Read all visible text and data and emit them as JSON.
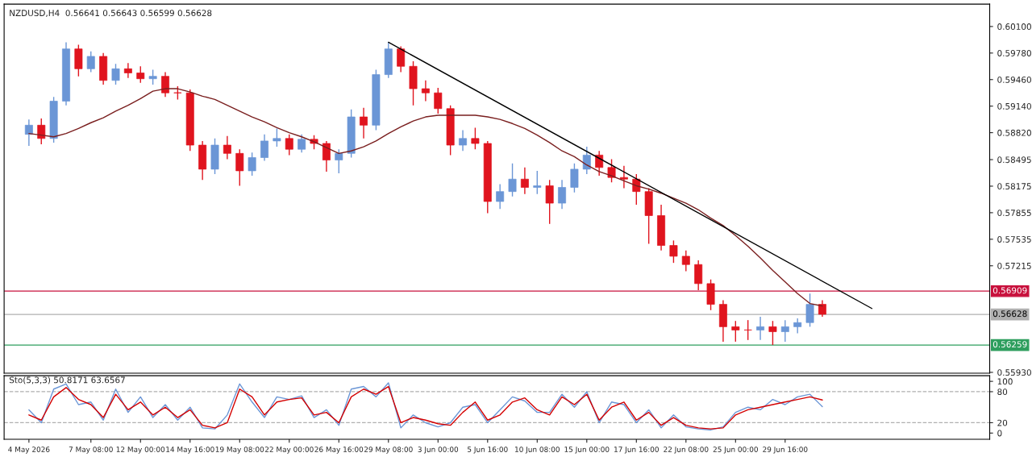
{
  "chart_data": [
    {
      "type": "candlestick",
      "title": "NZDUSD,H4  0.56641 0.56643 0.56599 0.56628",
      "categories": [
        null,
        null,
        null,
        null,
        null,
        null,
        null,
        null,
        null,
        null,
        null,
        null,
        null,
        null,
        null,
        null,
        null,
        null,
        null,
        null,
        null,
        null,
        null,
        null,
        null,
        null,
        null,
        null,
        null,
        null,
        null,
        null,
        null,
        null,
        null,
        null,
        null,
        null,
        null,
        null,
        null,
        null,
        null,
        null,
        null,
        null,
        null,
        null,
        null,
        null,
        null,
        null,
        null,
        null,
        null,
        null,
        null,
        null,
        null,
        null,
        null,
        null,
        null,
        null,
        null,
        null,
        null,
        null,
        null,
        null,
        null,
        null,
        null,
        null,
        null,
        null,
        null,
        null
      ],
      "ohlc": [
        [
          0.588,
          0.5898,
          0.5866,
          0.5891
        ],
        [
          0.5891,
          0.5899,
          0.5868,
          0.5875
        ],
        [
          0.5875,
          0.5925,
          0.587,
          0.592
        ],
        [
          0.592,
          0.5991,
          0.5915,
          0.5983
        ],
        [
          0.5983,
          0.5988,
          0.595,
          0.5959
        ],
        [
          0.5959,
          0.598,
          0.5955,
          0.5974
        ],
        [
          0.5974,
          0.5978,
          0.594,
          0.5945
        ],
        [
          0.5945,
          0.5965,
          0.594,
          0.5959
        ],
        [
          0.5959,
          0.5966,
          0.5948,
          0.5954
        ],
        [
          0.5954,
          0.5962,
          0.5942,
          0.5947
        ],
        [
          0.5947,
          0.5958,
          0.594,
          0.595
        ],
        [
          0.595,
          0.5955,
          0.5925,
          0.593
        ],
        [
          0.593,
          0.5938,
          0.5922,
          0.593
        ],
        [
          0.593,
          0.5934,
          0.586,
          0.5867
        ],
        [
          0.5867,
          0.5872,
          0.5825,
          0.5838
        ],
        [
          0.5838,
          0.5875,
          0.5832,
          0.5867
        ],
        [
          0.5867,
          0.5878,
          0.585,
          0.5857
        ],
        [
          0.5857,
          0.5862,
          0.5818,
          0.5836
        ],
        [
          0.5836,
          0.5858,
          0.583,
          0.5852
        ],
        [
          0.5852,
          0.588,
          0.5848,
          0.5872
        ],
        [
          0.5872,
          0.5887,
          0.5865,
          0.5875
        ],
        [
          0.5875,
          0.588,
          0.5855,
          0.5862
        ],
        [
          0.5862,
          0.588,
          0.5858,
          0.5874
        ],
        [
          0.5874,
          0.5879,
          0.5862,
          0.5869
        ],
        [
          0.5869,
          0.5872,
          0.5835,
          0.5849
        ],
        [
          0.5849,
          0.5862,
          0.5833,
          0.5857
        ],
        [
          0.5857,
          0.591,
          0.5852,
          0.5901
        ],
        [
          0.5901,
          0.5912,
          0.5875,
          0.5891
        ],
        [
          0.5891,
          0.5958,
          0.5885,
          0.5952
        ],
        [
          0.5952,
          0.5991,
          0.5948,
          0.5983
        ],
        [
          0.5983,
          0.5986,
          0.5955,
          0.5962
        ],
        [
          0.5962,
          0.5968,
          0.5915,
          0.5935
        ],
        [
          0.5935,
          0.5945,
          0.592,
          0.593
        ],
        [
          0.593,
          0.5936,
          0.5905,
          0.5911
        ],
        [
          0.5911,
          0.5915,
          0.5855,
          0.5867
        ],
        [
          0.5867,
          0.5885,
          0.586,
          0.5875
        ],
        [
          0.5875,
          0.5888,
          0.5862,
          0.5869
        ],
        [
          0.5869,
          0.5872,
          0.5785,
          0.5799
        ],
        [
          0.5799,
          0.582,
          0.579,
          0.5811
        ],
        [
          0.5811,
          0.5845,
          0.5805,
          0.5826
        ],
        [
          0.5826,
          0.584,
          0.5808,
          0.5816
        ],
        [
          0.5816,
          0.5836,
          0.5808,
          0.5818
        ],
        [
          0.5818,
          0.5825,
          0.5772,
          0.5797
        ],
        [
          0.5797,
          0.5825,
          0.579,
          0.5816
        ],
        [
          0.5816,
          0.5845,
          0.581,
          0.5838
        ],
        [
          0.5838,
          0.5865,
          0.5832,
          0.5855
        ],
        [
          0.5855,
          0.586,
          0.583,
          0.584
        ],
        [
          0.584,
          0.585,
          0.5822,
          0.5828
        ],
        [
          0.5828,
          0.5842,
          0.5815,
          0.5826
        ],
        [
          0.5826,
          0.5832,
          0.5795,
          0.5811
        ],
        [
          0.5811,
          0.5815,
          0.5748,
          0.5782
        ],
        [
          0.5782,
          0.5795,
          0.574,
          0.5746
        ],
        [
          0.5746,
          0.5752,
          0.5725,
          0.5733
        ],
        [
          0.5733,
          0.574,
          0.5715,
          0.5723
        ],
        [
          0.5723,
          0.5728,
          0.5692,
          0.57
        ],
        [
          0.57,
          0.5705,
          0.5668,
          0.5675
        ],
        [
          0.5675,
          0.568,
          0.563,
          0.5648
        ],
        [
          0.5648,
          0.5655,
          0.563,
          0.5644
        ],
        [
          0.5644,
          0.5656,
          0.5632,
          0.5644
        ],
        [
          0.5644,
          0.566,
          0.5632,
          0.5648
        ],
        [
          0.5648,
          0.5655,
          0.5626,
          0.5642
        ],
        [
          0.5642,
          0.5656,
          0.563,
          0.5648
        ],
        [
          0.5648,
          0.5658,
          0.564,
          0.5653
        ],
        [
          0.5653,
          0.5688,
          0.5648,
          0.5675
        ],
        [
          0.5675,
          0.568,
          0.566,
          0.5663
        ],
        null,
        null,
        null,
        null,
        null,
        null,
        null,
        null,
        null,
        null,
        null,
        null,
        null
      ],
      "colors": [
        "#6b96d6",
        "#e0141e",
        "#6b96d6",
        "#6b96d6",
        "#e0141e",
        "#6b96d6",
        "#e0141e",
        "#6b96d6",
        "#e0141e",
        "#e0141e",
        "#6b96d6",
        "#e0141e",
        "#e0141e",
        "#e0141e",
        "#e0141e",
        "#6b96d6",
        "#e0141e",
        "#e0141e",
        "#6b96d6",
        "#6b96d6",
        "#6b96d6",
        "#e0141e",
        "#6b96d6",
        "#e0141e",
        "#e0141e",
        "#6b96d6",
        "#6b96d6",
        "#e0141e",
        "#6b96d6",
        "#6b96d6",
        "#e0141e",
        "#e0141e",
        "#e0141e",
        "#e0141e",
        "#e0141e",
        "#6b96d6",
        "#e0141e",
        "#e0141e",
        "#6b96d6",
        "#6b96d6",
        "#e0141e",
        "#6b96d6",
        "#e0141e",
        "#6b96d6",
        "#6b96d6",
        "#6b96d6",
        "#e0141e",
        "#e0141e",
        "#e0141e",
        "#e0141e",
        "#e0141e",
        "#e0141e",
        "#e0141e",
        "#e0141e",
        "#e0141e",
        "#e0141e",
        "#e0141e",
        "#e0141e",
        "#e0141e",
        "#6b96d6",
        "#e0141e",
        "#6b96d6",
        "#6b96d6",
        "#6b96d6",
        "#e0141e",
        null,
        null,
        null,
        null,
        null,
        null,
        null,
        null,
        null,
        null,
        null,
        null,
        null
      ],
      "series": [
        {
          "type": "line",
          "color": "#7a1f1f",
          "values": [
            0.5881,
            0.5879,
            0.5877,
            0.5881,
            0.5887,
            0.5894,
            0.59,
            0.5908,
            0.5915,
            0.5923,
            0.5932,
            0.5935,
            0.5935,
            0.5931,
            0.5926,
            0.5922,
            0.5915,
            0.5908,
            0.5901,
            0.5895,
            0.5888,
            0.5882,
            0.5877,
            0.5871,
            0.5864,
            0.5857,
            0.586,
            0.5865,
            0.5872,
            0.5881,
            0.5889,
            0.5896,
            0.5901,
            0.5903,
            0.5903,
            0.5903,
            0.5903,
            0.5901,
            0.5898,
            0.5893,
            0.5887,
            0.5879,
            0.587,
            0.586,
            0.5853,
            0.5843,
            0.5835,
            0.583,
            0.5824,
            0.5818,
            0.5814,
            0.5809,
            0.5803,
            0.5797,
            0.5789,
            0.5779,
            0.577,
            0.5758,
            0.5745,
            0.5731,
            0.5716,
            0.5702,
            0.5688,
            0.5676,
            0.5673,
            null,
            null,
            null,
            null,
            null,
            null,
            null,
            null,
            null,
            null,
            null,
            null,
            null
          ]
        },
        {
          "type": "line",
          "color": "#000000",
          "values": [
            null,
            null,
            null,
            null,
            null,
            null,
            null,
            null,
            null,
            null,
            null,
            null,
            null,
            null,
            null,
            null,
            null,
            null,
            null,
            null,
            null,
            null,
            null,
            null,
            null,
            null,
            null,
            null,
            null,
            0.5991,
            null,
            null,
            null,
            null,
            null,
            null,
            null,
            null,
            null,
            null,
            null,
            null,
            null,
            null,
            null,
            null,
            null,
            null,
            null,
            null,
            null,
            null,
            null,
            null,
            null,
            null,
            null,
            null,
            null,
            null,
            null,
            null,
            null,
            null,
            null,
            null,
            null,
            null,
            0.567,
            null,
            null,
            null,
            null,
            null,
            null,
            null,
            null,
            null
          ]
        }
      ],
      "ylim": [
        0.5592,
        0.6037
      ],
      "yticks": [
        {
          "value": 0.601,
          "label": "0.60100"
        },
        {
          "value": 0.5978,
          "label": "0.59780"
        },
        {
          "value": 0.5946,
          "label": "0.59460"
        },
        {
          "value": 0.5914,
          "label": "0.59140"
        },
        {
          "value": 0.5882,
          "label": "0.58820"
        },
        {
          "value": 0.58495,
          "label": "0.58495"
        },
        {
          "value": 0.58175,
          "label": "0.58175"
        },
        {
          "value": 0.57855,
          "label": "0.57855"
        },
        {
          "value": 0.57535,
          "label": "0.57535"
        },
        {
          "value": 0.57215,
          "label": "0.57215"
        },
        {
          "value": 0.5593,
          "label": "0.55930"
        }
      ],
      "ref_lines": [
        {
          "axis": "y",
          "value": 0.56909,
          "label": "0.56909",
          "color": "#c8103c"
        },
        {
          "axis": "y",
          "value": 0.56628,
          "label": "0.56628",
          "color": "#b0b0b0"
        },
        {
          "axis": "y",
          "value": 0.56259,
          "label": "0.56259",
          "color": "#2e9e5e"
        }
      ],
      "tick_labels": "y",
      "grid": false
    },
    {
      "type": "line",
      "title": "Sto(5,3,3) 50.8171 63.6567",
      "categories": [
        "4 May 2026",
        null,
        null,
        null,
        null,
        "7 May 08:00",
        null,
        null,
        null,
        "12 May 00:00",
        null,
        null,
        null,
        "14 May 16:00",
        null,
        null,
        null,
        "19 May 08:00",
        null,
        null,
        null,
        "22 May 00:00",
        null,
        null,
        null,
        "26 May 16:00",
        null,
        null,
        null,
        "29 May 08:00",
        null,
        null,
        null,
        "3 Jun 00:00",
        null,
        null,
        null,
        "5 Jun 16:00",
        null,
        null,
        null,
        "10 Jun 08:00",
        null,
        null,
        null,
        "15 Jun 00:00",
        null,
        null,
        null,
        "17 Jun 16:00",
        null,
        null,
        null,
        "22 Jun 08:00",
        null,
        null,
        null,
        "25 Jun 00:00",
        null,
        null,
        null,
        "29 Jun 16:00",
        null,
        null,
        null,
        null,
        null,
        null,
        null,
        null,
        null,
        null,
        null,
        null,
        null,
        null,
        null,
        null
      ],
      "series": [
        {
          "color": "#6b96d6",
          "values": [
            45,
            20,
            85,
            95,
            55,
            60,
            25,
            85,
            40,
            70,
            30,
            55,
            25,
            50,
            10,
            8,
            35,
            95,
            60,
            30,
            70,
            65,
            72,
            30,
            45,
            15,
            85,
            90,
            70,
            97,
            10,
            35,
            20,
            12,
            20,
            50,
            55,
            20,
            45,
            70,
            62,
            40,
            40,
            75,
            50,
            80,
            20,
            60,
            55,
            20,
            45,
            10,
            35,
            12,
            8,
            6,
            12,
            40,
            50,
            45,
            65,
            55,
            70,
            75,
            51,
            null,
            null,
            null,
            null,
            null,
            null,
            null,
            null,
            null,
            null,
            null,
            null,
            null
          ]
        },
        {
          "color": "#d40000",
          "values": [
            35,
            25,
            70,
            88,
            65,
            55,
            30,
            75,
            45,
            60,
            35,
            50,
            30,
            45,
            15,
            10,
            20,
            85,
            70,
            35,
            60,
            65,
            68,
            35,
            40,
            20,
            70,
            85,
            75,
            90,
            20,
            30,
            25,
            18,
            15,
            40,
            60,
            25,
            35,
            60,
            68,
            45,
            35,
            70,
            55,
            75,
            25,
            50,
            60,
            25,
            40,
            15,
            30,
            15,
            10,
            8,
            10,
            35,
            45,
            50,
            55,
            60,
            65,
            70,
            64,
            null,
            null,
            null,
            null,
            null,
            null,
            null,
            null,
            null,
            null,
            null,
            null,
            null
          ]
        }
      ],
      "ylim": [
        -12,
        111
      ],
      "yticks": [
        0,
        20,
        80,
        100
      ],
      "ref_lines": [
        {
          "axis": "y",
          "value": 80,
          "color": "#b0b0b0",
          "line_style": "dashed"
        },
        {
          "axis": "y",
          "value": 20,
          "color": "#b0b0b0",
          "line_style": "dashed"
        }
      ],
      "grid": false
    }
  ]
}
